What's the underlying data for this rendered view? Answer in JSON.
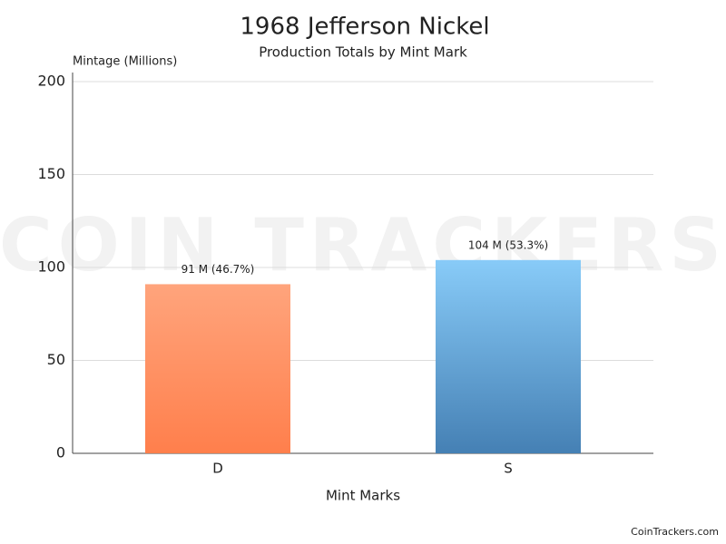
{
  "chart_data": {
    "type": "bar",
    "title": "1968 Jefferson Nickel",
    "subtitle": "Production Totals by Mint Mark",
    "y_axis_label": "Mintage (Millions)",
    "x_axis_label": "Mint Marks",
    "categories": [
      "D",
      "S"
    ],
    "values": [
      91,
      104
    ],
    "value_labels": [
      "91 M (46.7%)",
      "104 M (53.3%)"
    ],
    "colors": [
      {
        "top": "#ffa47c",
        "bottom": "#ff7f4c"
      },
      {
        "top": "#88cbf8",
        "bottom": "#4580b4"
      }
    ],
    "ylim": [
      0,
      200
    ],
    "yticks": [
      0,
      50,
      100,
      150,
      200
    ],
    "grid": true,
    "watermark": "COIN TRACKERS",
    "credit": "CoinTrackers.com"
  }
}
